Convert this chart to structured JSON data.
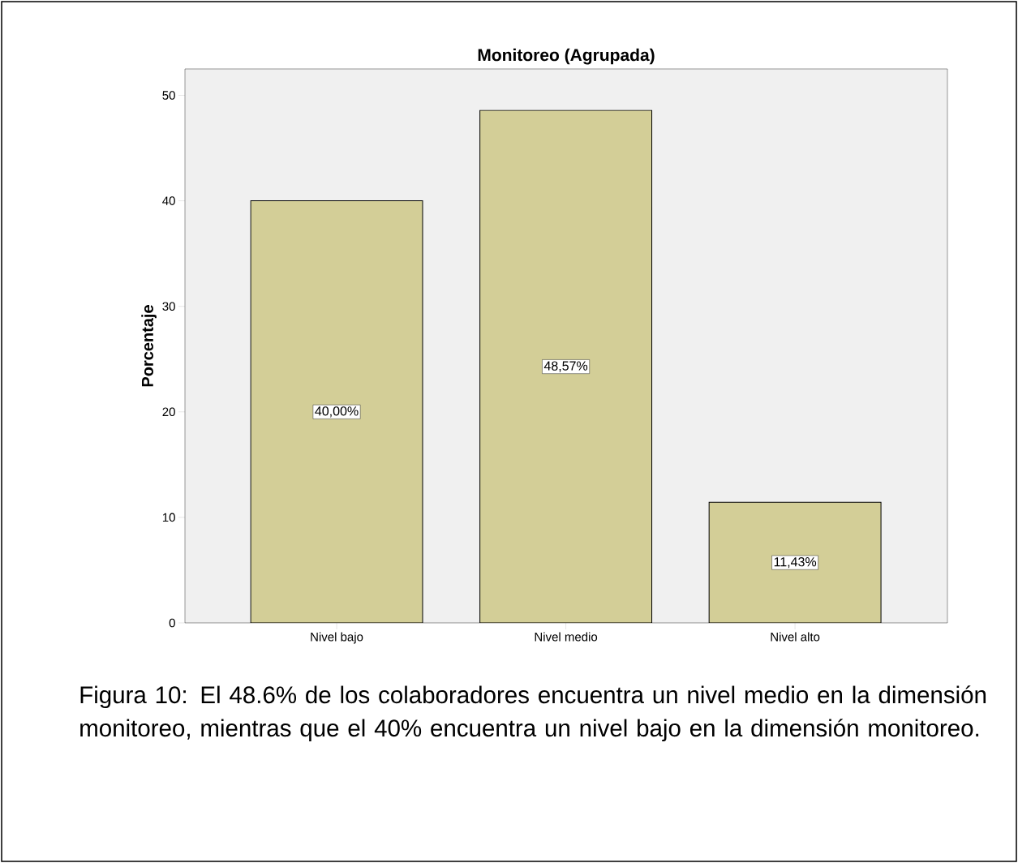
{
  "chart_data": {
    "type": "bar",
    "title": "Monitoreo (Agrupada)",
    "ylabel": "Porcentaje",
    "categories": [
      "Nivel bajo",
      "Nivel medio",
      "Nivel alto"
    ],
    "values": [
      40.0,
      48.57,
      11.43
    ],
    "value_labels": [
      "40,00%",
      "48,57%",
      "11,43%"
    ],
    "color": "#d3ce97",
    "ylim": [
      0,
      52.5
    ],
    "yticks": [
      0,
      10,
      20,
      30,
      40,
      50
    ],
    "annotations": [
      "Figura 10:  El 48.6% de los colaboradores encuentra un nivel medio en la dimensión monitoreo, mientras que el 40% encuentra un nivel bajo en la dimensión monitoreo."
    ]
  }
}
